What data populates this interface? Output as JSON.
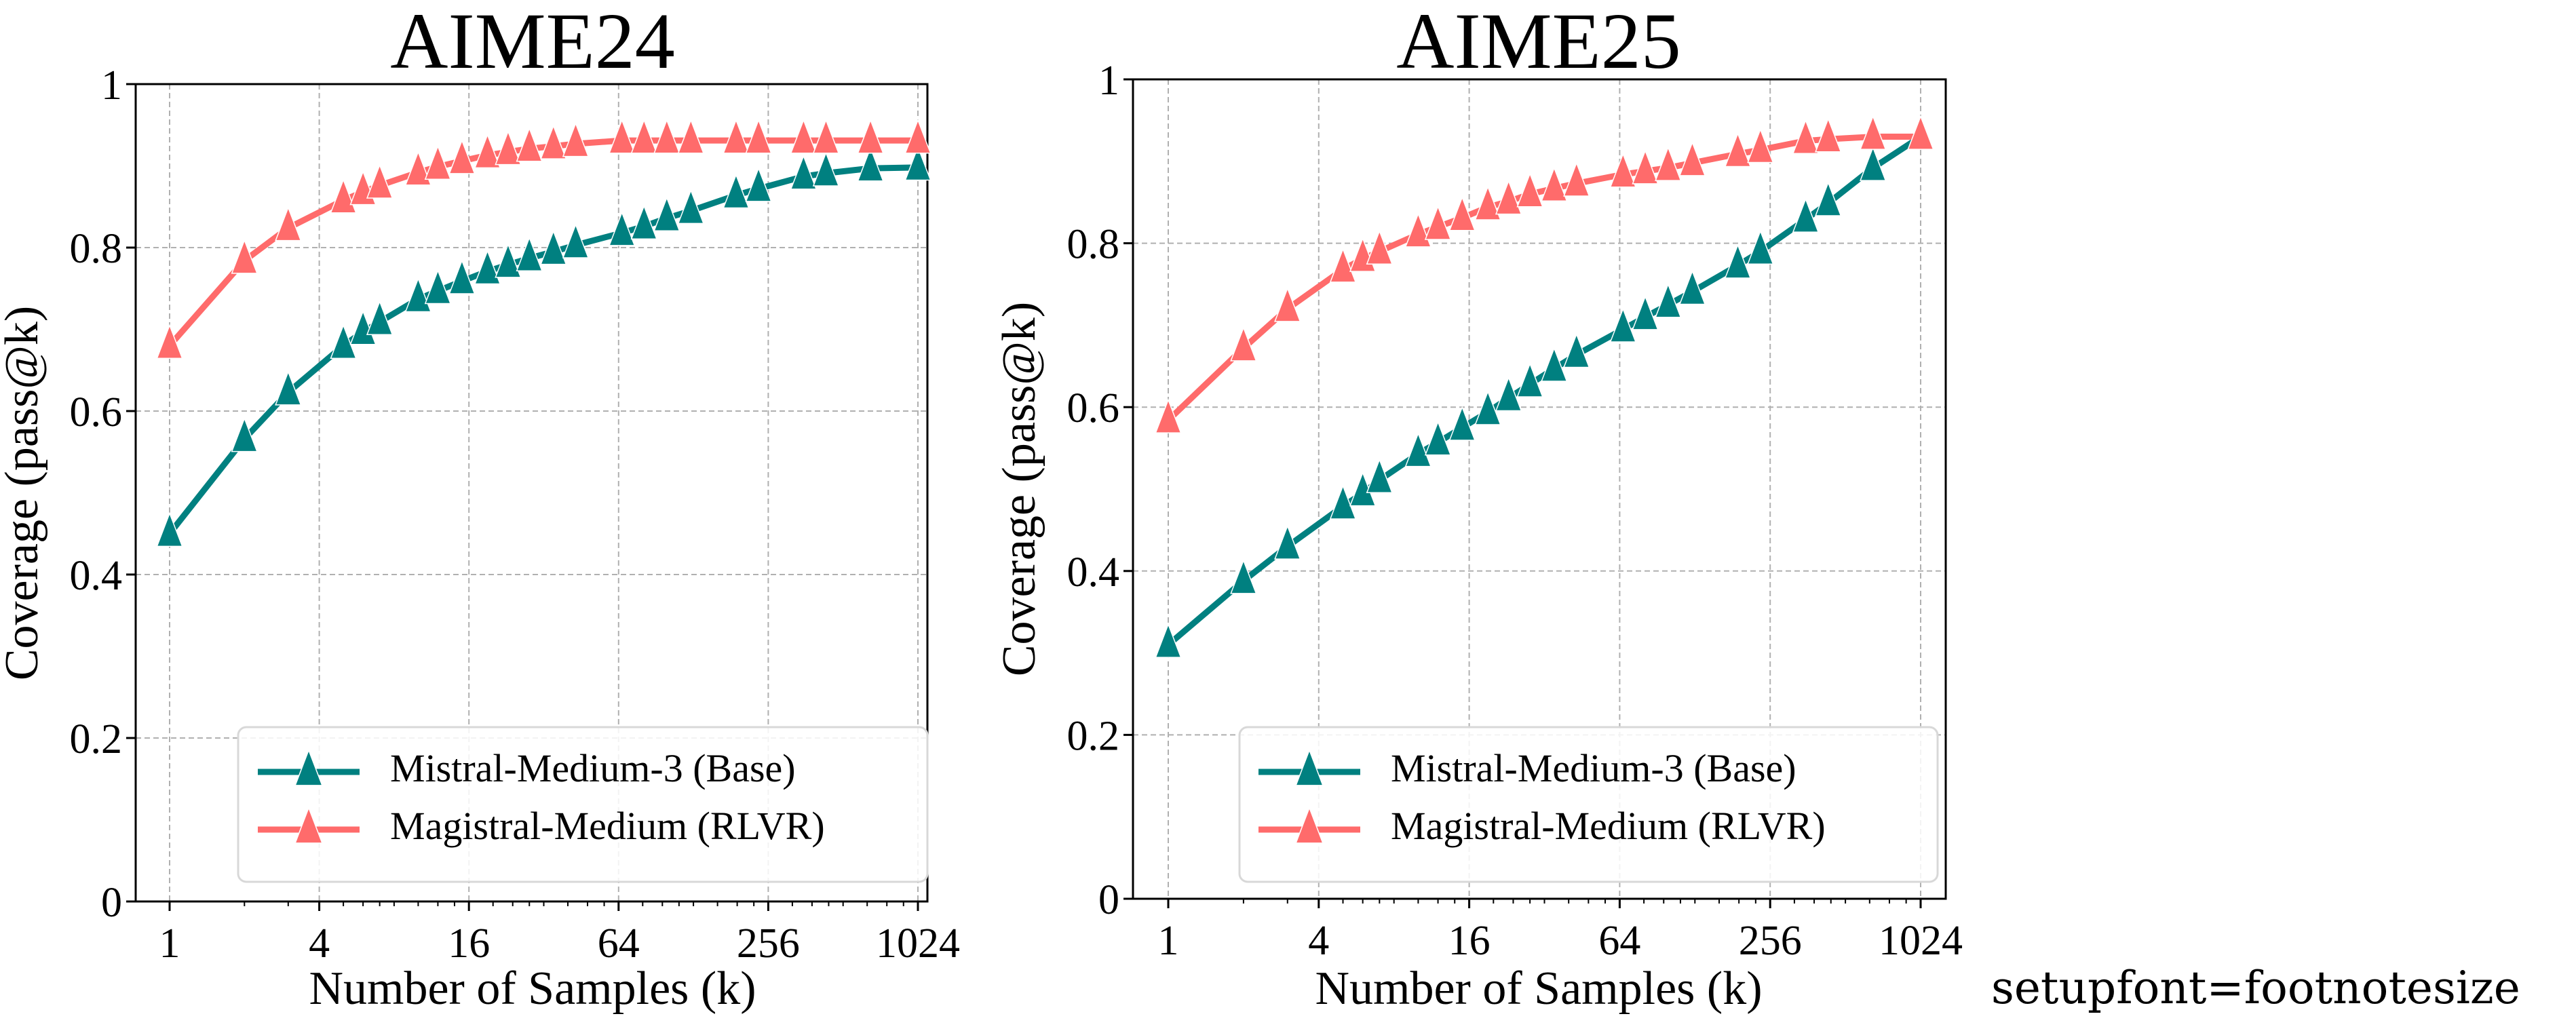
{
  "colors": {
    "base": "#008080",
    "rlvr": "#FF6B6B",
    "grid": "#b0b0b0"
  },
  "footnote": "setupfont=footnotesize",
  "chart_data": [
    {
      "type": "line",
      "title": "AIME24",
      "xlabel": "Number of Samples (k)",
      "ylabel": "Coverage (pass@k)",
      "xscale": "log2",
      "xticks": [
        "1",
        "4",
        "16",
        "64",
        "256",
        "1024"
      ],
      "yticks": [
        "0",
        "0.2",
        "0.4",
        "0.6",
        "0.8",
        "1"
      ],
      "ylim": [
        0,
        1
      ],
      "grid": true,
      "legend_position": "lower-right",
      "marker": "triangle-up",
      "x": [
        1,
        2,
        3,
        5,
        6,
        7,
        10,
        12,
        15,
        19,
        23,
        28,
        35,
        43,
        66,
        81,
        100,
        125,
        190,
        234,
        355,
        437,
        660,
        1024
      ],
      "series": [
        {
          "name": "Mistral-Medium-3 (Base)",
          "color_key": "base",
          "values": [
            0.45,
            0.566,
            0.623,
            0.68,
            0.697,
            0.709,
            0.737,
            0.747,
            0.759,
            0.771,
            0.779,
            0.787,
            0.795,
            0.803,
            0.818,
            0.826,
            0.836,
            0.845,
            0.864,
            0.872,
            0.887,
            0.891,
            0.897,
            0.898
          ]
        },
        {
          "name": "Magistral-Medium (RLVR)",
          "color_key": "rlvr",
          "values": [
            0.68,
            0.784,
            0.824,
            0.858,
            0.868,
            0.876,
            0.892,
            0.899,
            0.906,
            0.913,
            0.917,
            0.921,
            0.924,
            0.927,
            0.931,
            0.931,
            0.931,
            0.931,
            0.931,
            0.931,
            0.931,
            0.931,
            0.931,
            0.931
          ]
        }
      ]
    },
    {
      "type": "line",
      "title": "AIME25",
      "xlabel": "Number of Samples (k)",
      "ylabel": "Coverage (pass@k)",
      "xscale": "log2",
      "xticks": [
        "1",
        "4",
        "16",
        "64",
        "256",
        "1024"
      ],
      "yticks": [
        "0",
        "0.2",
        "0.4",
        "0.6",
        "0.8",
        "1"
      ],
      "ylim": [
        0,
        1
      ],
      "grid": true,
      "legend_position": "lower-right",
      "marker": "triangle-up",
      "x": [
        1,
        2,
        3,
        5,
        6,
        7,
        10,
        12,
        15,
        19,
        23,
        28,
        35,
        43,
        66,
        81,
        100,
        125,
        190,
        234,
        355,
        437,
        660,
        1024
      ],
      "series": [
        {
          "name": "Mistral-Medium-3 (Base)",
          "color_key": "base",
          "values": [
            0.31,
            0.388,
            0.43,
            0.479,
            0.495,
            0.511,
            0.543,
            0.557,
            0.575,
            0.594,
            0.611,
            0.628,
            0.647,
            0.664,
            0.695,
            0.71,
            0.725,
            0.741,
            0.773,
            0.79,
            0.829,
            0.849,
            0.892,
            0.93
          ]
        },
        {
          "name": "Magistral-Medium (RLVR)",
          "color_key": "rlvr",
          "values": [
            0.584,
            0.672,
            0.72,
            0.768,
            0.781,
            0.79,
            0.811,
            0.82,
            0.831,
            0.844,
            0.851,
            0.86,
            0.867,
            0.873,
            0.884,
            0.888,
            0.892,
            0.898,
            0.909,
            0.914,
            0.925,
            0.927,
            0.93,
            0.93
          ]
        }
      ]
    }
  ]
}
